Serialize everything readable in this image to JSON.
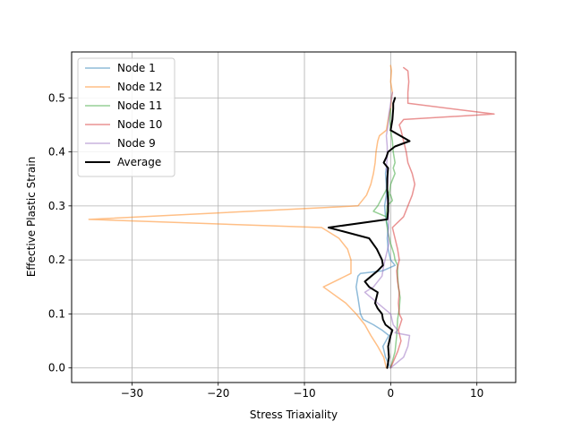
{
  "chart_data": {
    "type": "line",
    "title": "",
    "xlabel": "Stress Triaxiality",
    "ylabel": "Effective Plastic Strain",
    "xlim": [
      -37,
      14.5
    ],
    "ylim": [
      -0.027,
      0.585
    ],
    "xticks": [
      -30,
      -20,
      -10,
      0,
      10
    ],
    "xtick_labels": [
      "−30",
      "−20",
      "−10",
      "0",
      "10"
    ],
    "yticks": [
      0.0,
      0.1,
      0.2,
      0.3,
      0.4,
      0.5
    ],
    "ytick_labels": [
      "0.0",
      "0.1",
      "0.2",
      "0.3",
      "0.4",
      "0.5"
    ],
    "grid": true,
    "legend_position": "upper-left",
    "series": [
      {
        "name": "Node 1",
        "color": "#1f77b4",
        "opacity": 0.5,
        "width": 1.5,
        "x": [
          0.0,
          -0.6,
          -0.9,
          -0.2,
          -1.0,
          -2.0,
          -3.2,
          -3.5,
          -3.8,
          -4.0,
          -3.8,
          -3.5,
          -0.9,
          0.5,
          0.0,
          -0.3,
          -0.4,
          -0.3,
          -0.6,
          -0.7,
          -0.5,
          -0.5,
          -0.6,
          -0.5
        ],
        "y": [
          0.0,
          0.02,
          0.04,
          0.06,
          0.07,
          0.08,
          0.09,
          0.1,
          0.13,
          0.15,
          0.17,
          0.175,
          0.18,
          0.19,
          0.2,
          0.22,
          0.24,
          0.26,
          0.28,
          0.3,
          0.32,
          0.34,
          0.36,
          0.37
        ]
      },
      {
        "name": "Node 12",
        "color": "#ff7f0e",
        "opacity": 0.5,
        "width": 1.5,
        "x": [
          -0.5,
          -0.8,
          -1.5,
          -2.3,
          -3.0,
          -4.0,
          -5.2,
          -7.8,
          -4.6,
          -4.6,
          -5.0,
          -6.0,
          -8.0,
          -35.0,
          -3.8,
          -2.8,
          -2.3,
          -2.0,
          -1.8,
          -1.7,
          -1.5,
          -1.3,
          -0.5,
          -0.3,
          0.0,
          0.1,
          0.2,
          0.1,
          0.0,
          0.1,
          0.0
        ],
        "y": [
          0.0,
          0.02,
          0.04,
          0.06,
          0.08,
          0.1,
          0.12,
          0.15,
          0.175,
          0.2,
          0.22,
          0.24,
          0.26,
          0.275,
          0.3,
          0.32,
          0.34,
          0.36,
          0.38,
          0.4,
          0.42,
          0.43,
          0.44,
          0.46,
          0.48,
          0.5,
          0.51,
          0.52,
          0.53,
          0.55,
          0.56
        ]
      },
      {
        "name": "Node 11",
        "color": "#2ca02c",
        "opacity": 0.5,
        "width": 1.5,
        "x": [
          0.0,
          0.5,
          0.7,
          0.8,
          1.0,
          1.1,
          0.9,
          0.8,
          0.8,
          0.5,
          0.4,
          0.2,
          0.0,
          -0.3,
          -0.5,
          -0.5,
          -0.4,
          0.2,
          0.0,
          -0.5,
          -1.5,
          -2.0,
          -0.5,
          0.0,
          0.5,
          0.3,
          0.5,
          0.3,
          0.2,
          0.0,
          -0.1,
          0.0
        ],
        "y": [
          0.0,
          0.03,
          0.06,
          0.09,
          0.11,
          0.13,
          0.15,
          0.17,
          0.19,
          0.2,
          0.21,
          0.22,
          0.23,
          0.25,
          0.27,
          0.28,
          0.3,
          0.31,
          0.32,
          0.33,
          0.3,
          0.29,
          0.28,
          0.34,
          0.36,
          0.37,
          0.38,
          0.4,
          0.42,
          0.44,
          0.46,
          0.48
        ]
      },
      {
        "name": "Node 10",
        "color": "#d62728",
        "opacity": 0.5,
        "width": 1.5,
        "x": [
          0.0,
          0.8,
          1.2,
          0.9,
          1.3,
          1.0,
          0.9,
          1.0,
          0.8,
          0.7,
          1.0,
          0.8,
          0.5,
          0.2,
          1.5,
          2.0,
          2.5,
          2.8,
          2.5,
          2.0,
          1.8,
          1.5,
          1.2,
          1.0,
          1.5,
          12.0,
          2.0,
          2.0,
          2.1,
          2.0,
          1.5
        ],
        "y": [
          0.0,
          0.03,
          0.05,
          0.07,
          0.09,
          0.1,
          0.12,
          0.14,
          0.16,
          0.18,
          0.2,
          0.22,
          0.24,
          0.26,
          0.28,
          0.3,
          0.32,
          0.34,
          0.36,
          0.38,
          0.4,
          0.42,
          0.44,
          0.45,
          0.46,
          0.47,
          0.49,
          0.51,
          0.53,
          0.55,
          0.556
        ]
      },
      {
        "name": "Node 9",
        "color": "#9467bd",
        "opacity": 0.5,
        "width": 1.5,
        "x": [
          0.0,
          1.5,
          2.0,
          2.2,
          0.5,
          0.8,
          0.3,
          0.0,
          -1.5,
          -3.0,
          -2.0,
          -1.0,
          -0.8,
          -0.5,
          -0.2,
          -0.3,
          -0.2,
          -0.3,
          -0.4,
          -0.4,
          -0.3,
          -0.5,
          -0.4,
          -0.4,
          -0.5,
          -0.3,
          -0.2,
          0.0,
          0.1,
          0.2
        ],
        "y": [
          0.0,
          0.02,
          0.04,
          0.06,
          0.065,
          0.07,
          0.08,
          0.1,
          0.12,
          0.14,
          0.15,
          0.17,
          0.19,
          0.21,
          0.23,
          0.25,
          0.27,
          0.29,
          0.31,
          0.33,
          0.35,
          0.37,
          0.39,
          0.41,
          0.43,
          0.45,
          0.47,
          0.49,
          0.5,
          0.51
        ]
      },
      {
        "name": "Average",
        "color": "#000000",
        "opacity": 1.0,
        "width": 2.0,
        "x": [
          -0.4,
          -0.2,
          -0.3,
          0.0,
          0.2,
          -0.6,
          -0.9,
          -1.0,
          -1.5,
          -1.8,
          -1.5,
          -2.5,
          -3.0,
          -1.5,
          -0.9,
          -1.0,
          -1.3,
          -1.6,
          -2.5,
          -7.2,
          -0.4,
          -0.3,
          -0.3,
          -0.4,
          -0.4,
          -0.3,
          -0.8,
          -0.5,
          -0.3,
          0.5,
          2.2,
          0.0,
          0.2,
          0.3,
          0.3,
          0.5
        ],
        "y": [
          0.0,
          0.02,
          0.04,
          0.06,
          0.07,
          0.08,
          0.09,
          0.1,
          0.11,
          0.12,
          0.14,
          0.15,
          0.16,
          0.18,
          0.19,
          0.2,
          0.21,
          0.22,
          0.24,
          0.26,
          0.275,
          0.29,
          0.31,
          0.33,
          0.35,
          0.37,
          0.38,
          0.39,
          0.4,
          0.41,
          0.42,
          0.44,
          0.46,
          0.48,
          0.49,
          0.5
        ]
      }
    ]
  }
}
